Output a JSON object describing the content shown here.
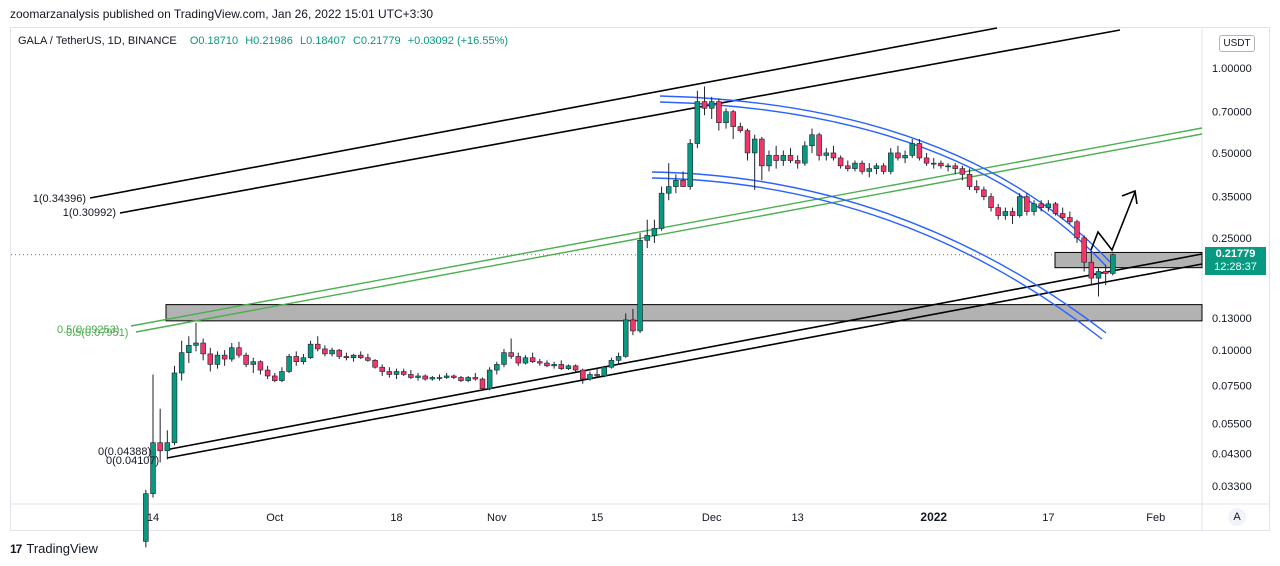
{
  "header": {
    "published": "zoomarzanalysis published on TradingView.com, Jan 26, 2022 15:01 UTC+3:30"
  },
  "legend": {
    "pair": "GALA / TetherUS, 1D, BINANCE",
    "open": "O0.18710",
    "high": "H0.21986",
    "low": "L0.18407",
    "close": "C0.21779",
    "change": "+0.03092 (+16.55%)"
  },
  "currency_badge": "USDT",
  "last_price": {
    "value": "0.21779",
    "countdown": "12:28:37"
  },
  "scale_mode_button": "A",
  "brand": {
    "logo": "17",
    "name": "TradingView"
  },
  "colors": {
    "up": "#089981",
    "down": "#f23668",
    "channel": "#000000",
    "arc": "#2962ff",
    "green_channel": "#4caf50",
    "zone": "#b2b2b2"
  },
  "chart_data": {
    "type": "candlestick",
    "symbol": "GALA / TetherUS",
    "interval": "1D",
    "y_scale": "log",
    "y_ticks": [
      "1.00000",
      "0.70000",
      "0.50000",
      "0.35000",
      "0.25000",
      "0.13000",
      "0.10000",
      "0.07500",
      "0.05500",
      "0.04300",
      "0.03300"
    ],
    "x_ticks": [
      "14",
      "Oct",
      "18",
      "Nov",
      "15",
      "Dec",
      "13",
      "2022",
      "17",
      "Feb"
    ],
    "bold_x_ticks": [
      "2022"
    ],
    "annotations": [
      "1(0.34396)",
      "1(0.30992)",
      "0.5(0.09253)",
      "0.5(0.07951)",
      "0(0.04388)",
      "0(0.04107)"
    ],
    "candles": [
      {
        "d": "2021-09-13",
        "o": 0.021,
        "h": 0.032,
        "l": 0.02,
        "c": 0.031
      },
      {
        "d": "2021-09-14",
        "o": 0.031,
        "h": 0.082,
        "l": 0.03,
        "c": 0.047
      },
      {
        "d": "2021-09-15",
        "o": 0.047,
        "h": 0.062,
        "l": 0.04,
        "c": 0.044
      },
      {
        "d": "2021-09-16",
        "o": 0.044,
        "h": 0.052,
        "l": 0.041,
        "c": 0.047
      },
      {
        "d": "2021-09-17",
        "o": 0.047,
        "h": 0.088,
        "l": 0.046,
        "c": 0.083
      },
      {
        "d": "2021-09-18",
        "o": 0.083,
        "h": 0.108,
        "l": 0.078,
        "c": 0.098
      },
      {
        "d": "2021-09-19",
        "o": 0.098,
        "h": 0.112,
        "l": 0.09,
        "c": 0.104
      },
      {
        "d": "2021-09-20",
        "o": 0.104,
        "h": 0.125,
        "l": 0.099,
        "c": 0.106
      },
      {
        "d": "2021-09-21",
        "o": 0.106,
        "h": 0.11,
        "l": 0.092,
        "c": 0.097
      },
      {
        "d": "2021-09-22",
        "o": 0.097,
        "h": 0.102,
        "l": 0.084,
        "c": 0.089
      },
      {
        "d": "2021-09-23",
        "o": 0.089,
        "h": 0.099,
        "l": 0.086,
        "c": 0.096
      },
      {
        "d": "2021-09-24",
        "o": 0.096,
        "h": 0.1,
        "l": 0.088,
        "c": 0.093
      },
      {
        "d": "2021-09-25",
        "o": 0.093,
        "h": 0.106,
        "l": 0.091,
        "c": 0.102
      },
      {
        "d": "2021-09-26",
        "o": 0.102,
        "h": 0.107,
        "l": 0.094,
        "c": 0.096
      },
      {
        "d": "2021-09-27",
        "o": 0.096,
        "h": 0.098,
        "l": 0.087,
        "c": 0.089
      },
      {
        "d": "2021-09-28",
        "o": 0.089,
        "h": 0.094,
        "l": 0.083,
        "c": 0.091
      },
      {
        "d": "2021-09-29",
        "o": 0.091,
        "h": 0.092,
        "l": 0.082,
        "c": 0.085
      },
      {
        "d": "2021-09-30",
        "o": 0.085,
        "h": 0.088,
        "l": 0.079,
        "c": 0.081
      },
      {
        "d": "2021-10-01",
        "o": 0.081,
        "h": 0.083,
        "l": 0.077,
        "c": 0.078
      },
      {
        "d": "2021-10-02",
        "o": 0.078,
        "h": 0.087,
        "l": 0.077,
        "c": 0.084
      },
      {
        "d": "2021-10-03",
        "o": 0.084,
        "h": 0.097,
        "l": 0.083,
        "c": 0.095
      },
      {
        "d": "2021-10-04",
        "o": 0.095,
        "h": 0.099,
        "l": 0.088,
        "c": 0.091
      },
      {
        "d": "2021-10-05",
        "o": 0.091,
        "h": 0.097,
        "l": 0.089,
        "c": 0.094
      },
      {
        "d": "2021-10-06",
        "o": 0.094,
        "h": 0.108,
        "l": 0.093,
        "c": 0.105
      },
      {
        "d": "2021-10-07",
        "o": 0.105,
        "h": 0.112,
        "l": 0.099,
        "c": 0.101
      },
      {
        "d": "2021-10-08",
        "o": 0.101,
        "h": 0.104,
        "l": 0.095,
        "c": 0.097
      },
      {
        "d": "2021-10-09",
        "o": 0.097,
        "h": 0.102,
        "l": 0.095,
        "c": 0.1
      },
      {
        "d": "2021-10-10",
        "o": 0.1,
        "h": 0.101,
        "l": 0.093,
        "c": 0.095
      },
      {
        "d": "2021-10-11",
        "o": 0.095,
        "h": 0.098,
        "l": 0.092,
        "c": 0.094
      },
      {
        "d": "2021-10-12",
        "o": 0.094,
        "h": 0.097,
        "l": 0.091,
        "c": 0.096
      },
      {
        "d": "2021-10-13",
        "o": 0.096,
        "h": 0.099,
        "l": 0.093,
        "c": 0.094
      },
      {
        "d": "2021-10-14",
        "o": 0.094,
        "h": 0.097,
        "l": 0.091,
        "c": 0.092
      },
      {
        "d": "2021-10-15",
        "o": 0.092,
        "h": 0.093,
        "l": 0.086,
        "c": 0.087
      },
      {
        "d": "2021-10-16",
        "o": 0.087,
        "h": 0.089,
        "l": 0.081,
        "c": 0.084
      },
      {
        "d": "2021-10-17",
        "o": 0.084,
        "h": 0.087,
        "l": 0.08,
        "c": 0.082
      },
      {
        "d": "2021-10-18",
        "o": 0.082,
        "h": 0.086,
        "l": 0.079,
        "c": 0.084
      },
      {
        "d": "2021-10-19",
        "o": 0.084,
        "h": 0.086,
        "l": 0.081,
        "c": 0.082
      },
      {
        "d": "2021-10-20",
        "o": 0.082,
        "h": 0.085,
        "l": 0.079,
        "c": 0.08
      },
      {
        "d": "2021-10-21",
        "o": 0.08,
        "h": 0.083,
        "l": 0.078,
        "c": 0.081
      },
      {
        "d": "2021-10-22",
        "o": 0.081,
        "h": 0.082,
        "l": 0.078,
        "c": 0.079
      },
      {
        "d": "2021-10-23",
        "o": 0.079,
        "h": 0.081,
        "l": 0.078,
        "c": 0.08
      },
      {
        "d": "2021-10-24",
        "o": 0.08,
        "h": 0.082,
        "l": 0.078,
        "c": 0.08
      },
      {
        "d": "2021-10-25",
        "o": 0.08,
        "h": 0.083,
        "l": 0.079,
        "c": 0.081
      },
      {
        "d": "2021-10-26",
        "o": 0.081,
        "h": 0.082,
        "l": 0.079,
        "c": 0.08
      },
      {
        "d": "2021-10-27",
        "o": 0.08,
        "h": 0.081,
        "l": 0.077,
        "c": 0.078
      },
      {
        "d": "2021-10-28",
        "o": 0.078,
        "h": 0.081,
        "l": 0.077,
        "c": 0.08
      },
      {
        "d": "2021-10-29",
        "o": 0.08,
        "h": 0.083,
        "l": 0.078,
        "c": 0.079
      },
      {
        "d": "2021-10-30",
        "o": 0.079,
        "h": 0.08,
        "l": 0.072,
        "c": 0.073
      },
      {
        "d": "2021-10-31",
        "o": 0.073,
        "h": 0.087,
        "l": 0.072,
        "c": 0.085
      },
      {
        "d": "2021-11-01",
        "o": 0.085,
        "h": 0.091,
        "l": 0.082,
        "c": 0.089
      },
      {
        "d": "2021-11-02",
        "o": 0.089,
        "h": 0.101,
        "l": 0.087,
        "c": 0.098
      },
      {
        "d": "2021-11-03",
        "o": 0.098,
        "h": 0.11,
        "l": 0.093,
        "c": 0.095
      },
      {
        "d": "2021-11-04",
        "o": 0.095,
        "h": 0.098,
        "l": 0.088,
        "c": 0.09
      },
      {
        "d": "2021-11-05",
        "o": 0.09,
        "h": 0.096,
        "l": 0.089,
        "c": 0.094
      },
      {
        "d": "2021-11-06",
        "o": 0.094,
        "h": 0.098,
        "l": 0.09,
        "c": 0.091
      },
      {
        "d": "2021-11-07",
        "o": 0.091,
        "h": 0.093,
        "l": 0.088,
        "c": 0.09
      },
      {
        "d": "2021-11-08",
        "o": 0.09,
        "h": 0.092,
        "l": 0.087,
        "c": 0.088
      },
      {
        "d": "2021-11-09",
        "o": 0.088,
        "h": 0.091,
        "l": 0.086,
        "c": 0.089
      },
      {
        "d": "2021-11-10",
        "o": 0.089,
        "h": 0.092,
        "l": 0.085,
        "c": 0.086
      },
      {
        "d": "2021-11-11",
        "o": 0.086,
        "h": 0.089,
        "l": 0.085,
        "c": 0.088
      },
      {
        "d": "2021-11-12",
        "o": 0.088,
        "h": 0.089,
        "l": 0.084,
        "c": 0.085
      },
      {
        "d": "2021-11-13",
        "o": 0.085,
        "h": 0.086,
        "l": 0.076,
        "c": 0.079
      },
      {
        "d": "2021-11-14",
        "o": 0.079,
        "h": 0.084,
        "l": 0.078,
        "c": 0.082
      },
      {
        "d": "2021-11-15",
        "o": 0.082,
        "h": 0.086,
        "l": 0.08,
        "c": 0.081
      },
      {
        "d": "2021-11-16",
        "o": 0.081,
        "h": 0.088,
        "l": 0.08,
        "c": 0.087
      },
      {
        "d": "2021-11-17",
        "o": 0.087,
        "h": 0.094,
        "l": 0.086,
        "c": 0.092
      },
      {
        "d": "2021-11-18",
        "o": 0.092,
        "h": 0.098,
        "l": 0.089,
        "c": 0.095
      },
      {
        "d": "2021-11-19",
        "o": 0.095,
        "h": 0.135,
        "l": 0.094,
        "c": 0.128
      },
      {
        "d": "2021-11-20",
        "o": 0.128,
        "h": 0.14,
        "l": 0.113,
        "c": 0.117
      },
      {
        "d": "2021-11-21",
        "o": 0.117,
        "h": 0.26,
        "l": 0.115,
        "c": 0.245
      },
      {
        "d": "2021-11-22",
        "o": 0.245,
        "h": 0.29,
        "l": 0.23,
        "c": 0.255
      },
      {
        "d": "2021-11-23",
        "o": 0.255,
        "h": 0.29,
        "l": 0.24,
        "c": 0.27
      },
      {
        "d": "2021-11-24",
        "o": 0.27,
        "h": 0.38,
        "l": 0.265,
        "c": 0.36
      },
      {
        "d": "2021-11-25",
        "o": 0.36,
        "h": 0.46,
        "l": 0.34,
        "c": 0.38
      },
      {
        "d": "2021-11-26",
        "o": 0.38,
        "h": 0.42,
        "l": 0.36,
        "c": 0.4
      },
      {
        "d": "2021-11-27",
        "o": 0.4,
        "h": 0.43,
        "l": 0.38,
        "c": 0.38
      },
      {
        "d": "2021-11-28",
        "o": 0.38,
        "h": 0.56,
        "l": 0.37,
        "c": 0.54
      },
      {
        "d": "2021-11-29",
        "o": 0.54,
        "h": 0.83,
        "l": 0.52,
        "c": 0.76
      },
      {
        "d": "2021-11-30",
        "o": 0.76,
        "h": 0.86,
        "l": 0.68,
        "c": 0.72
      },
      {
        "d": "2021-12-01",
        "o": 0.72,
        "h": 0.79,
        "l": 0.66,
        "c": 0.76
      },
      {
        "d": "2021-12-02",
        "o": 0.76,
        "h": 0.78,
        "l": 0.6,
        "c": 0.64
      },
      {
        "d": "2021-12-03",
        "o": 0.64,
        "h": 0.72,
        "l": 0.61,
        "c": 0.7
      },
      {
        "d": "2021-12-04",
        "o": 0.7,
        "h": 0.71,
        "l": 0.56,
        "c": 0.62
      },
      {
        "d": "2021-12-05",
        "o": 0.62,
        "h": 0.64,
        "l": 0.59,
        "c": 0.6
      },
      {
        "d": "2021-12-06",
        "o": 0.6,
        "h": 0.61,
        "l": 0.47,
        "c": 0.5
      },
      {
        "d": "2021-12-07",
        "o": 0.5,
        "h": 0.58,
        "l": 0.37,
        "c": 0.56
      },
      {
        "d": "2021-12-08",
        "o": 0.56,
        "h": 0.57,
        "l": 0.4,
        "c": 0.45
      },
      {
        "d": "2021-12-09",
        "o": 0.45,
        "h": 0.51,
        "l": 0.43,
        "c": 0.49
      },
      {
        "d": "2021-12-10",
        "o": 0.49,
        "h": 0.53,
        "l": 0.44,
        "c": 0.47
      },
      {
        "d": "2021-12-11",
        "o": 0.47,
        "h": 0.51,
        "l": 0.45,
        "c": 0.49
      },
      {
        "d": "2021-12-12",
        "o": 0.49,
        "h": 0.52,
        "l": 0.46,
        "c": 0.47
      },
      {
        "d": "2021-12-13",
        "o": 0.47,
        "h": 0.49,
        "l": 0.44,
        "c": 0.46
      },
      {
        "d": "2021-12-14",
        "o": 0.46,
        "h": 0.55,
        "l": 0.45,
        "c": 0.53
      },
      {
        "d": "2021-12-15",
        "o": 0.53,
        "h": 0.61,
        "l": 0.5,
        "c": 0.58
      },
      {
        "d": "2021-12-16",
        "o": 0.58,
        "h": 0.59,
        "l": 0.47,
        "c": 0.49
      },
      {
        "d": "2021-12-17",
        "o": 0.49,
        "h": 0.52,
        "l": 0.47,
        "c": 0.5
      },
      {
        "d": "2021-12-18",
        "o": 0.5,
        "h": 0.53,
        "l": 0.47,
        "c": 0.48
      },
      {
        "d": "2021-12-19",
        "o": 0.48,
        "h": 0.49,
        "l": 0.44,
        "c": 0.45
      },
      {
        "d": "2021-12-20",
        "o": 0.45,
        "h": 0.47,
        "l": 0.43,
        "c": 0.44
      },
      {
        "d": "2021-12-21",
        "o": 0.44,
        "h": 0.47,
        "l": 0.43,
        "c": 0.46
      },
      {
        "d": "2021-12-22",
        "o": 0.46,
        "h": 0.47,
        "l": 0.42,
        "c": 0.43
      },
      {
        "d": "2021-12-23",
        "o": 0.43,
        "h": 0.46,
        "l": 0.41,
        "c": 0.44
      },
      {
        "d": "2021-12-24",
        "o": 0.44,
        "h": 0.46,
        "l": 0.42,
        "c": 0.45
      },
      {
        "d": "2021-12-25",
        "o": 0.45,
        "h": 0.46,
        "l": 0.42,
        "c": 0.43
      },
      {
        "d": "2021-12-26",
        "o": 0.43,
        "h": 0.52,
        "l": 0.42,
        "c": 0.5
      },
      {
        "d": "2021-12-27",
        "o": 0.5,
        "h": 0.53,
        "l": 0.47,
        "c": 0.48
      },
      {
        "d": "2021-12-28",
        "o": 0.48,
        "h": 0.51,
        "l": 0.46,
        "c": 0.49
      },
      {
        "d": "2021-12-29",
        "o": 0.49,
        "h": 0.56,
        "l": 0.48,
        "c": 0.54
      },
      {
        "d": "2021-12-30",
        "o": 0.54,
        "h": 0.56,
        "l": 0.47,
        "c": 0.48
      },
      {
        "d": "2021-12-31",
        "o": 0.48,
        "h": 0.5,
        "l": 0.45,
        "c": 0.46
      },
      {
        "d": "2022-01-01",
        "o": 0.46,
        "h": 0.48,
        "l": 0.44,
        "c": 0.46
      },
      {
        "d": "2022-01-02",
        "o": 0.46,
        "h": 0.47,
        "l": 0.44,
        "c": 0.45
      },
      {
        "d": "2022-01-03",
        "o": 0.45,
        "h": 0.46,
        "l": 0.43,
        "c": 0.45
      },
      {
        "d": "2022-01-04",
        "o": 0.45,
        "h": 0.46,
        "l": 0.42,
        "c": 0.44
      },
      {
        "d": "2022-01-05",
        "o": 0.44,
        "h": 0.45,
        "l": 0.4,
        "c": 0.42
      },
      {
        "d": "2022-01-06",
        "o": 0.42,
        "h": 0.44,
        "l": 0.37,
        "c": 0.38
      },
      {
        "d": "2022-01-07",
        "o": 0.38,
        "h": 0.4,
        "l": 0.36,
        "c": 0.37
      },
      {
        "d": "2022-01-08",
        "o": 0.37,
        "h": 0.38,
        "l": 0.34,
        "c": 0.35
      },
      {
        "d": "2022-01-09",
        "o": 0.35,
        "h": 0.36,
        "l": 0.31,
        "c": 0.32
      },
      {
        "d": "2022-01-10",
        "o": 0.32,
        "h": 0.33,
        "l": 0.29,
        "c": 0.3
      },
      {
        "d": "2022-01-11",
        "o": 0.3,
        "h": 0.32,
        "l": 0.29,
        "c": 0.31
      },
      {
        "d": "2022-01-12",
        "o": 0.31,
        "h": 0.32,
        "l": 0.28,
        "c": 0.3
      },
      {
        "d": "2022-01-13",
        "o": 0.3,
        "h": 0.36,
        "l": 0.295,
        "c": 0.35
      },
      {
        "d": "2022-01-14",
        "o": 0.35,
        "h": 0.36,
        "l": 0.3,
        "c": 0.31
      },
      {
        "d": "2022-01-15",
        "o": 0.31,
        "h": 0.34,
        "l": 0.3,
        "c": 0.33
      },
      {
        "d": "2022-01-16",
        "o": 0.33,
        "h": 0.34,
        "l": 0.31,
        "c": 0.32
      },
      {
        "d": "2022-01-17",
        "o": 0.32,
        "h": 0.34,
        "l": 0.31,
        "c": 0.33
      },
      {
        "d": "2022-01-18",
        "o": 0.33,
        "h": 0.335,
        "l": 0.3,
        "c": 0.305
      },
      {
        "d": "2022-01-19",
        "o": 0.305,
        "h": 0.32,
        "l": 0.29,
        "c": 0.295
      },
      {
        "d": "2022-01-20",
        "o": 0.295,
        "h": 0.31,
        "l": 0.28,
        "c": 0.285
      },
      {
        "d": "2022-01-21",
        "o": 0.285,
        "h": 0.29,
        "l": 0.24,
        "c": 0.25
      },
      {
        "d": "2022-01-22",
        "o": 0.25,
        "h": 0.255,
        "l": 0.19,
        "c": 0.205
      },
      {
        "d": "2022-01-23",
        "o": 0.205,
        "h": 0.225,
        "l": 0.17,
        "c": 0.18
      },
      {
        "d": "2022-01-24",
        "o": 0.18,
        "h": 0.195,
        "l": 0.155,
        "c": 0.19
      },
      {
        "d": "2022-01-25",
        "o": 0.19,
        "h": 0.2,
        "l": 0.17,
        "c": 0.187
      },
      {
        "d": "2022-01-26",
        "o": 0.187,
        "h": 0.22,
        "l": 0.184,
        "c": 0.218
      }
    ]
  }
}
